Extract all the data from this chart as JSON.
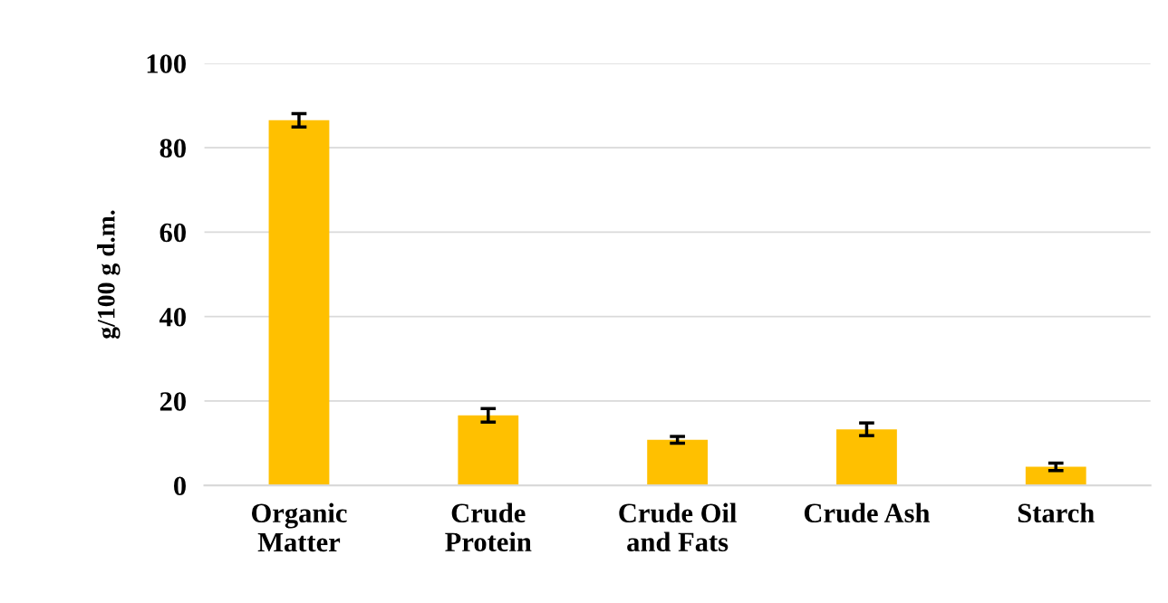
{
  "chart_data": {
    "type": "bar",
    "ylabel": "g/100 g d.m.",
    "categories": [
      "Organic\nMatter",
      "Crude\nProtein",
      "Crude Oil\nand Fats",
      "Crude Ash",
      "Starch"
    ],
    "values": [
      86.5,
      16.6,
      10.8,
      13.3,
      4.4
    ],
    "errors": [
      1.6,
      1.6,
      0.8,
      1.5,
      0.9
    ],
    "color": "#ffc000",
    "ylim": [
      0,
      100
    ],
    "yticks": [
      0,
      20,
      40,
      60,
      80,
      100
    ],
    "grid": "y"
  }
}
